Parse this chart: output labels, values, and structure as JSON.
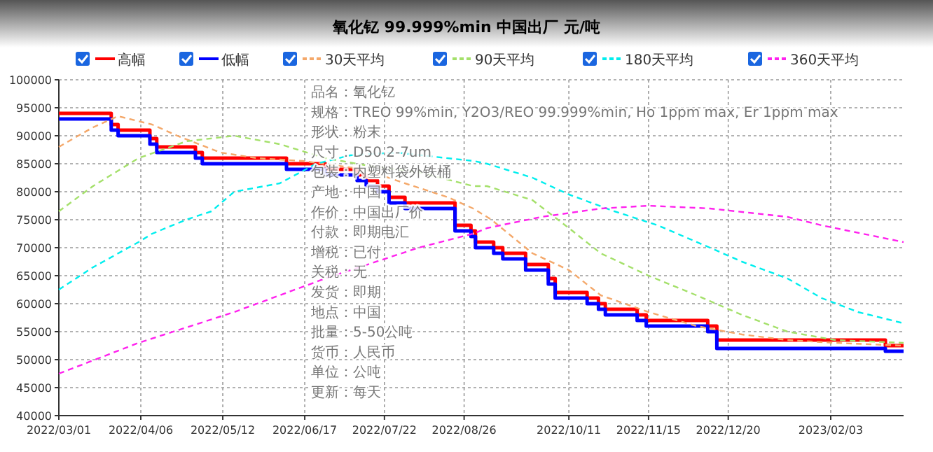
{
  "chart_data": {
    "type": "line",
    "title": "氧化钇 99.999%min 中国出厂 元/吨",
    "legend": "top",
    "grid": true,
    "xlim": [
      "2022-03-01",
      "2023-03-07"
    ],
    "xticks": [
      {
        "value": "2022-03-01",
        "label": "2022/03/01"
      },
      {
        "value": "2022-04-06",
        "label": "2022/04/06"
      },
      {
        "value": "2022-05-12",
        "label": "2022/05/12"
      },
      {
        "value": "2022-06-17",
        "label": "2022/06/17"
      },
      {
        "value": "2022-07-22",
        "label": "2022/07/22"
      },
      {
        "value": "2022-08-26",
        "label": "2022/08/26"
      },
      {
        "value": "2022-10-11",
        "label": "2022/10/11"
      },
      {
        "value": "2022-11-15",
        "label": "2022/11/15"
      },
      {
        "value": "2022-12-20",
        "label": "2022/12/20"
      },
      {
        "value": "2023-02-03",
        "label": "2023/02/03"
      }
    ],
    "ylim": [
      40000,
      100000
    ],
    "yticks": [
      40000,
      45000,
      50000,
      55000,
      60000,
      65000,
      70000,
      75000,
      80000,
      85000,
      90000,
      95000,
      100000
    ],
    "series": [
      {
        "name": "高幅",
        "type": "step",
        "color": "#ff0000",
        "line_style": "solid",
        "x": [
          "2022-03-01",
          "2022-03-24",
          "2022-03-27",
          "2022-04-10",
          "2022-04-13",
          "2022-04-30",
          "2022-05-03",
          "2022-06-09",
          "2022-06-26",
          "2022-07-10",
          "2022-07-14",
          "2022-07-19",
          "2022-07-24",
          "2022-07-31",
          "2022-08-22",
          "2022-08-29",
          "2022-08-31",
          "2022-09-08",
          "2022-09-12",
          "2022-09-22",
          "2022-10-02",
          "2022-10-05",
          "2022-10-19",
          "2022-10-24",
          "2022-10-27",
          "2022-11-10",
          "2022-11-14",
          "2022-12-11",
          "2022-12-15",
          "2023-02-27",
          "2023-03-07"
        ],
        "values": [
          94000,
          92000,
          91000,
          89500,
          88000,
          87000,
          86000,
          85000,
          84000,
          83000,
          82000,
          81000,
          79000,
          78000,
          74000,
          73000,
          71000,
          70000,
          69000,
          67000,
          64500,
          62000,
          61000,
          60000,
          59000,
          58000,
          57000,
          56000,
          53500,
          52500,
          52500
        ]
      },
      {
        "name": "低幅",
        "type": "step",
        "color": "#0000ff",
        "line_style": "solid",
        "x": [
          "2022-03-01",
          "2022-03-24",
          "2022-03-27",
          "2022-04-10",
          "2022-04-13",
          "2022-04-30",
          "2022-05-03",
          "2022-06-09",
          "2022-06-26",
          "2022-07-10",
          "2022-07-14",
          "2022-07-19",
          "2022-07-24",
          "2022-07-31",
          "2022-08-22",
          "2022-08-29",
          "2022-08-31",
          "2022-09-08",
          "2022-09-12",
          "2022-09-22",
          "2022-10-02",
          "2022-10-05",
          "2022-10-19",
          "2022-10-24",
          "2022-10-27",
          "2022-11-10",
          "2022-11-14",
          "2022-12-11",
          "2022-12-15",
          "2023-02-27",
          "2023-03-07"
        ],
        "values": [
          93000,
          91000,
          90000,
          88500,
          87000,
          86000,
          85000,
          84000,
          83000,
          82000,
          81000,
          80000,
          78000,
          77000,
          73000,
          72000,
          70000,
          69000,
          68000,
          66000,
          63500,
          61000,
          60000,
          59000,
          58000,
          57000,
          56000,
          55000,
          52000,
          51500,
          51500
        ]
      },
      {
        "name": "30天平均",
        "type": "line",
        "color": "#f4a86a",
        "line_style": "dashed",
        "x": [
          "2022-03-01",
          "2022-03-16",
          "2022-03-27",
          "2022-04-11",
          "2022-04-22",
          "2022-05-11",
          "2022-05-27",
          "2022-06-16",
          "2022-07-13",
          "2022-07-31",
          "2022-08-19",
          "2022-08-30",
          "2022-09-07",
          "2022-09-25",
          "2022-10-11",
          "2022-10-25",
          "2022-11-15",
          "2022-12-06",
          "2022-12-26",
          "2023-01-15",
          "2023-02-05",
          "2023-03-07"
        ],
        "values": [
          88000,
          91500,
          93500,
          92000,
          90000,
          87000,
          86000,
          85500,
          84000,
          81500,
          79000,
          77000,
          75000,
          69000,
          66000,
          61500,
          58500,
          56000,
          54500,
          53500,
          53000,
          52500
        ]
      },
      {
        "name": "90天平均",
        "type": "line",
        "color": "#a4e06a",
        "line_style": "dashed",
        "x": [
          "2022-03-01",
          "2022-03-16",
          "2022-04-05",
          "2022-04-26",
          "2022-05-17",
          "2022-06-06",
          "2022-06-26",
          "2022-07-17",
          "2022-08-06",
          "2022-08-30",
          "2022-09-05",
          "2022-09-25",
          "2022-10-11",
          "2022-10-25",
          "2022-11-15",
          "2022-12-06",
          "2022-12-26",
          "2023-01-15",
          "2023-02-05",
          "2023-03-07"
        ],
        "values": [
          76500,
          81000,
          86000,
          89000,
          90000,
          88500,
          86000,
          84500,
          83500,
          81000,
          81000,
          78500,
          73500,
          69000,
          65000,
          61500,
          58000,
          55000,
          53500,
          53000
        ]
      },
      {
        "name": "180天平均",
        "type": "line",
        "color": "#00eeee",
        "line_style": "dashed",
        "x": [
          "2022-03-01",
          "2022-03-16",
          "2022-04-05",
          "2022-04-11",
          "2022-04-26",
          "2022-05-07",
          "2022-05-17",
          "2022-06-06",
          "2022-06-22",
          "2022-07-07",
          "2022-07-27",
          "2022-08-30",
          "2022-09-05",
          "2022-09-25",
          "2022-10-11",
          "2022-10-31",
          "2022-11-19",
          "2022-12-12",
          "2022-12-26",
          "2023-01-15",
          "2023-01-30",
          "2023-02-15",
          "2023-03-07"
        ],
        "values": [
          62500,
          66500,
          71000,
          72500,
          75000,
          76500,
          80000,
          81500,
          85000,
          86500,
          87000,
          85500,
          85000,
          82500,
          79500,
          76500,
          74000,
          70000,
          67500,
          64500,
          61000,
          58500,
          56500
        ]
      },
      {
        "name": "360天平均",
        "type": "line",
        "color": "#ff22ee",
        "line_style": "dashed",
        "x": [
          "2022-03-01",
          "2022-04-05",
          "2022-05-17",
          "2022-06-26",
          "2022-08-06",
          "2022-08-30",
          "2022-09-05",
          "2022-09-29",
          "2022-10-25",
          "2022-11-15",
          "2022-12-12",
          "2023-01-15",
          "2023-01-30",
          "2023-03-07"
        ],
        "values": [
          47500,
          53000,
          58500,
          64500,
          70000,
          72500,
          73500,
          75500,
          77000,
          77500,
          77000,
          75500,
          74000,
          71000
        ]
      }
    ],
    "annotations": [
      "品名：氧化钇",
      "规格：TREO 99%min, Y2O3/REO 99.999%min, Ho 1ppm max, Er 1ppm max",
      "形状：粉末",
      "尺寸：D50 2-7um",
      "包装：内塑料袋外铁桶",
      "产地：中国",
      "作价：中国出厂价",
      "付款：即期电汇",
      "增税：已付",
      "关税：无",
      "发货：即期",
      "地点：中国",
      "批量：5-50公吨",
      "货币：人民币",
      "单位：公吨",
      "更新：每天"
    ]
  }
}
